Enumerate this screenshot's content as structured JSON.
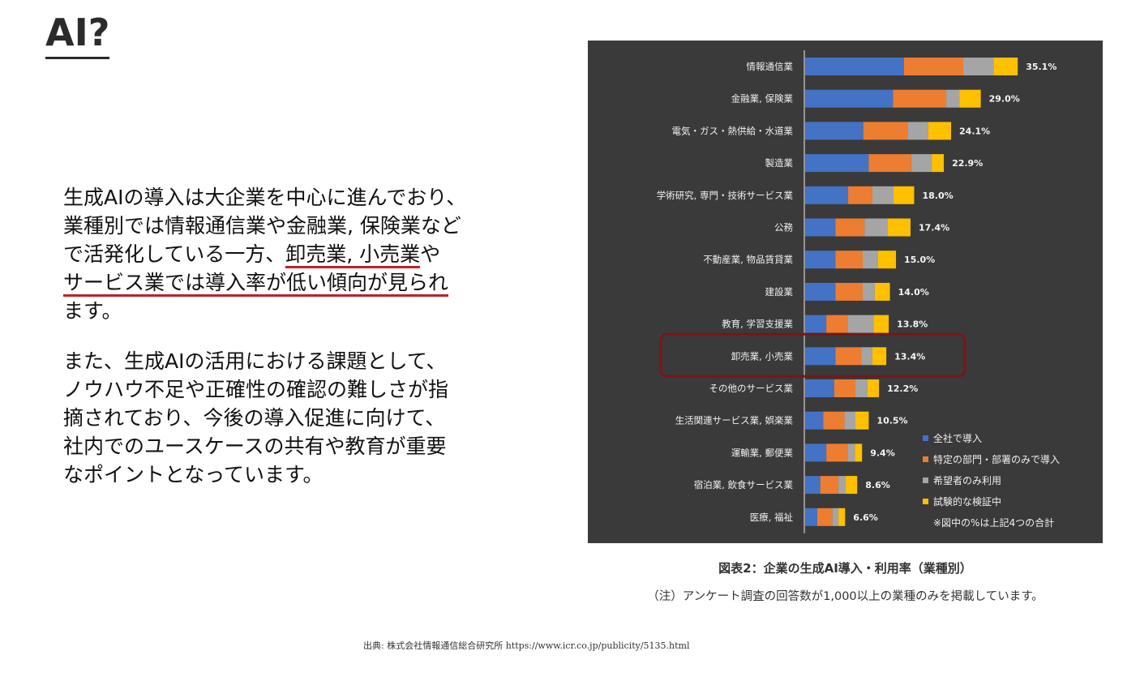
{
  "title": "AI?",
  "body": {
    "para1_lines": [
      {
        "pre": "生成AIの導入は大企業を中心に進んでおり、",
        "ul": ""
      },
      {
        "pre": "業種別では情報通信業や金融業, 保険業など",
        "ul": ""
      },
      {
        "pre": "で活発化している一方、",
        "ul": "卸売業, 小売業",
        "post": "や"
      },
      {
        "pre": "",
        "ul": "サービス業では導入率が低い傾向が見られ",
        "post": ""
      },
      {
        "pre": "ます。",
        "ul": ""
      }
    ],
    "para2_lines": [
      "また、生成AIの活用における課題として、",
      "ノウハウ不足や正確性の確認の難しさが指",
      "摘されており、今後の導入促進に向けて、",
      "社内でのユースケースの共有や教育が重要",
      "なポイントとなっています。"
    ]
  },
  "caption": {
    "title": "図表2：企業の生成AI導入・利用率（業種別）",
    "note": "（注）アンケート調査の回答数が1,000以上の業種のみを掲載しています。"
  },
  "source": "出典: 株式会社情報通信総合研究所 https://www.icr.co.jp/publicity/5135.html",
  "colors": {
    "blue": "#4472c4",
    "orange": "#ed7d31",
    "gray": "#a5a5a5",
    "yellow": "#ffc000",
    "highlight": "#7a1518"
  },
  "chart_data": {
    "type": "bar",
    "orientation": "horizontal",
    "stacked": true,
    "categories": [
      "情報通信業",
      "金融業, 保険業",
      "電気・ガス・熱供給・水道業",
      "製造業",
      "学術研究, 専門・技術サービス業",
      "公務",
      "不動産業, 物品賃貸業",
      "建設業",
      "教育, 学習支援業",
      "卸売業, 小売業",
      "その他のサービス業",
      "生活関連サービス業, 娯楽業",
      "運輸業, 郵便業",
      "宿泊業, 飲食サービス業",
      "医療, 福祉"
    ],
    "totals": [
      35.1,
      29.0,
      24.1,
      22.9,
      18.0,
      17.4,
      15.0,
      14.0,
      13.8,
      13.4,
      12.2,
      10.5,
      9.4,
      8.6,
      6.6
    ],
    "total_labels": [
      "35.1%",
      "29.0%",
      "24.1%",
      "22.9%",
      "18.0%",
      "17.4%",
      "15.0%",
      "14.0%",
      "13.8%",
      "13.4%",
      "12.2%",
      "10.5%",
      "9.4%",
      "8.6%",
      "6.6%"
    ],
    "series": [
      {
        "name": "全社で導入",
        "color": "#4472c4",
        "values": [
          16.3,
          14.5,
          9.6,
          10.5,
          7.1,
          5.0,
          5.0,
          5.0,
          3.5,
          5.0,
          4.8,
          3.0,
          3.5,
          2.5,
          2.0
        ]
      },
      {
        "name": "特定の部門・部署のみで導入",
        "color": "#ed7d31",
        "values": [
          9.8,
          8.8,
          7.3,
          7.0,
          4.0,
          4.8,
          4.5,
          4.5,
          3.5,
          4.3,
          3.5,
          3.5,
          3.5,
          3.0,
          2.5
        ]
      },
      {
        "name": "希望者のみ利用",
        "color": "#a5a5a5",
        "values": [
          5.0,
          2.2,
          3.4,
          3.4,
          3.5,
          3.8,
          2.5,
          2.0,
          4.3,
          1.8,
          2.0,
          1.8,
          1.2,
          1.2,
          1.0
        ]
      },
      {
        "name": "試験的な検証中",
        "color": "#ffc000",
        "values": [
          4.0,
          3.5,
          3.8,
          2.0,
          3.4,
          3.8,
          3.0,
          2.5,
          2.5,
          2.3,
          1.9,
          2.2,
          1.2,
          1.9,
          1.1
        ]
      }
    ],
    "highlighted_category": "卸売業, 小売業",
    "legend_position": "bottom-right",
    "legend_note": "※図中の%は上記4つの合計",
    "xlim": [
      0,
      40
    ],
    "grid": false
  }
}
